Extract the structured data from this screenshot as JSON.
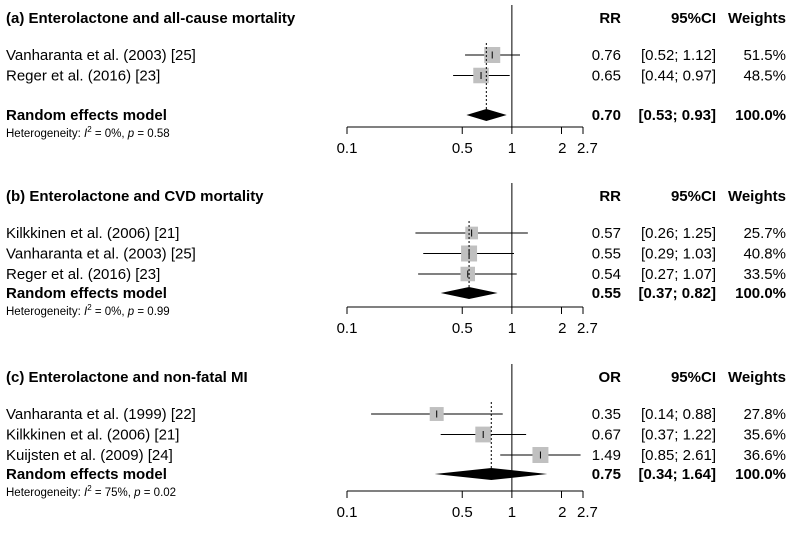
{
  "chart_data": [
    {
      "type": "forest",
      "panel": "a",
      "title": "(a) Enterolactone and all-cause mortality",
      "headers": {
        "effect": "RR",
        "ci": "95%CI",
        "weights": "Weights"
      },
      "studies": [
        {
          "label": "Vanharanta et al. (2003) [25]",
          "est": 0.76,
          "lo": 0.52,
          "hi": 1.12,
          "weight": 51.5,
          "est_text": "0.76",
          "ci_text": "[0.52; 1.12]",
          "weight_text": "51.5%"
        },
        {
          "label": "Reger et al. (2016) [23]",
          "est": 0.65,
          "lo": 0.44,
          "hi": 0.97,
          "weight": 48.5,
          "est_text": "0.65",
          "ci_text": "[0.44; 0.97]",
          "weight_text": "48.5%"
        }
      ],
      "pooled": {
        "label": "Random effects model",
        "est": 0.7,
        "lo": 0.53,
        "hi": 0.93,
        "est_text": "0.70",
        "ci_text": "[0.53; 0.93]",
        "weight_text": "100.0%"
      },
      "heterogeneity": {
        "prefix": "Heterogeneity: ",
        "I": "I",
        "sup": "2",
        "i2_text": " = 0%, ",
        "p": "p",
        "p_text": " = 0.58"
      },
      "xscale": "log",
      "xlim": [
        0.1,
        2.7
      ],
      "ticks": [
        0.1,
        0.5,
        1,
        2,
        2.7
      ],
      "tick_labels": [
        "0.1",
        "0.5",
        "1",
        "2",
        "2.7"
      ]
    },
    {
      "type": "forest",
      "panel": "b",
      "title": "(b) Enterolactone and CVD mortality",
      "headers": {
        "effect": "RR",
        "ci": "95%CI",
        "weights": "Weights"
      },
      "studies": [
        {
          "label": "Kilkkinen et al. (2006) [21]",
          "est": 0.57,
          "lo": 0.26,
          "hi": 1.25,
          "weight": 25.7,
          "est_text": "0.57",
          "ci_text": "[0.26; 1.25]",
          "weight_text": "25.7%"
        },
        {
          "label": "Vanharanta et al. (2003) [25]",
          "est": 0.55,
          "lo": 0.29,
          "hi": 1.03,
          "weight": 40.8,
          "est_text": "0.55",
          "ci_text": "[0.29; 1.03]",
          "weight_text": "40.8%"
        },
        {
          "label": "Reger et al. (2016) [23]",
          "est": 0.54,
          "lo": 0.27,
          "hi": 1.07,
          "weight": 33.5,
          "est_text": "0.54",
          "ci_text": "[0.27; 1.07]",
          "weight_text": "33.5%"
        }
      ],
      "pooled": {
        "label": "Random effects model",
        "est": 0.55,
        "lo": 0.37,
        "hi": 0.82,
        "est_text": "0.55",
        "ci_text": "[0.37; 0.82]",
        "weight_text": "100.0%"
      },
      "heterogeneity": {
        "prefix": "Heterogeneity: ",
        "I": "I",
        "sup": "2",
        "i2_text": " = 0%, ",
        "p": "p",
        "p_text": " = 0.99"
      },
      "xscale": "log",
      "xlim": [
        0.1,
        2.7
      ],
      "ticks": [
        0.1,
        0.5,
        1,
        2,
        2.7
      ],
      "tick_labels": [
        "0.1",
        "0.5",
        "1",
        "2",
        "2.7"
      ]
    },
    {
      "type": "forest",
      "panel": "c",
      "title": "(c) Enterolactone and non-fatal MI",
      "headers": {
        "effect": "OR",
        "ci": "95%CI",
        "weights": "Weights"
      },
      "studies": [
        {
          "label": "Vanharanta et al. (1999) [22]",
          "est": 0.35,
          "lo": 0.14,
          "hi": 0.88,
          "weight": 27.8,
          "est_text": "0.35",
          "ci_text": "[0.14; 0.88]",
          "weight_text": "27.8%"
        },
        {
          "label": "Kilkkinen et al. (2006) [21]",
          "est": 0.67,
          "lo": 0.37,
          "hi": 1.22,
          "weight": 35.6,
          "est_text": "0.67",
          "ci_text": "[0.37; 1.22]",
          "weight_text": "35.6%"
        },
        {
          "label": "Kuijsten et al. (2009) [24]",
          "est": 1.49,
          "lo": 0.85,
          "hi": 2.61,
          "weight": 36.6,
          "est_text": "1.49",
          "ci_text": "[0.85; 2.61]",
          "weight_text": "36.6%"
        }
      ],
      "pooled": {
        "label": "Random effects model",
        "est": 0.75,
        "lo": 0.34,
        "hi": 1.64,
        "est_text": "0.75",
        "ci_text": "[0.34; 1.64]",
        "weight_text": "100.0%"
      },
      "heterogeneity": {
        "prefix": "Heterogeneity: ",
        "I": "I",
        "sup": "2",
        "i2_text": " = 75%, ",
        "p": "p",
        "p_text": " = 0.02"
      },
      "xscale": "log",
      "xlim": [
        0.1,
        2.7
      ],
      "ticks": [
        0.1,
        0.5,
        1,
        2,
        2.7
      ],
      "tick_labels": [
        "0.1",
        "0.5",
        "1",
        "2",
        "2.7"
      ]
    }
  ],
  "colors": {
    "square": "#c0c0c0",
    "diamond": "#000000",
    "line": "#000000"
  }
}
